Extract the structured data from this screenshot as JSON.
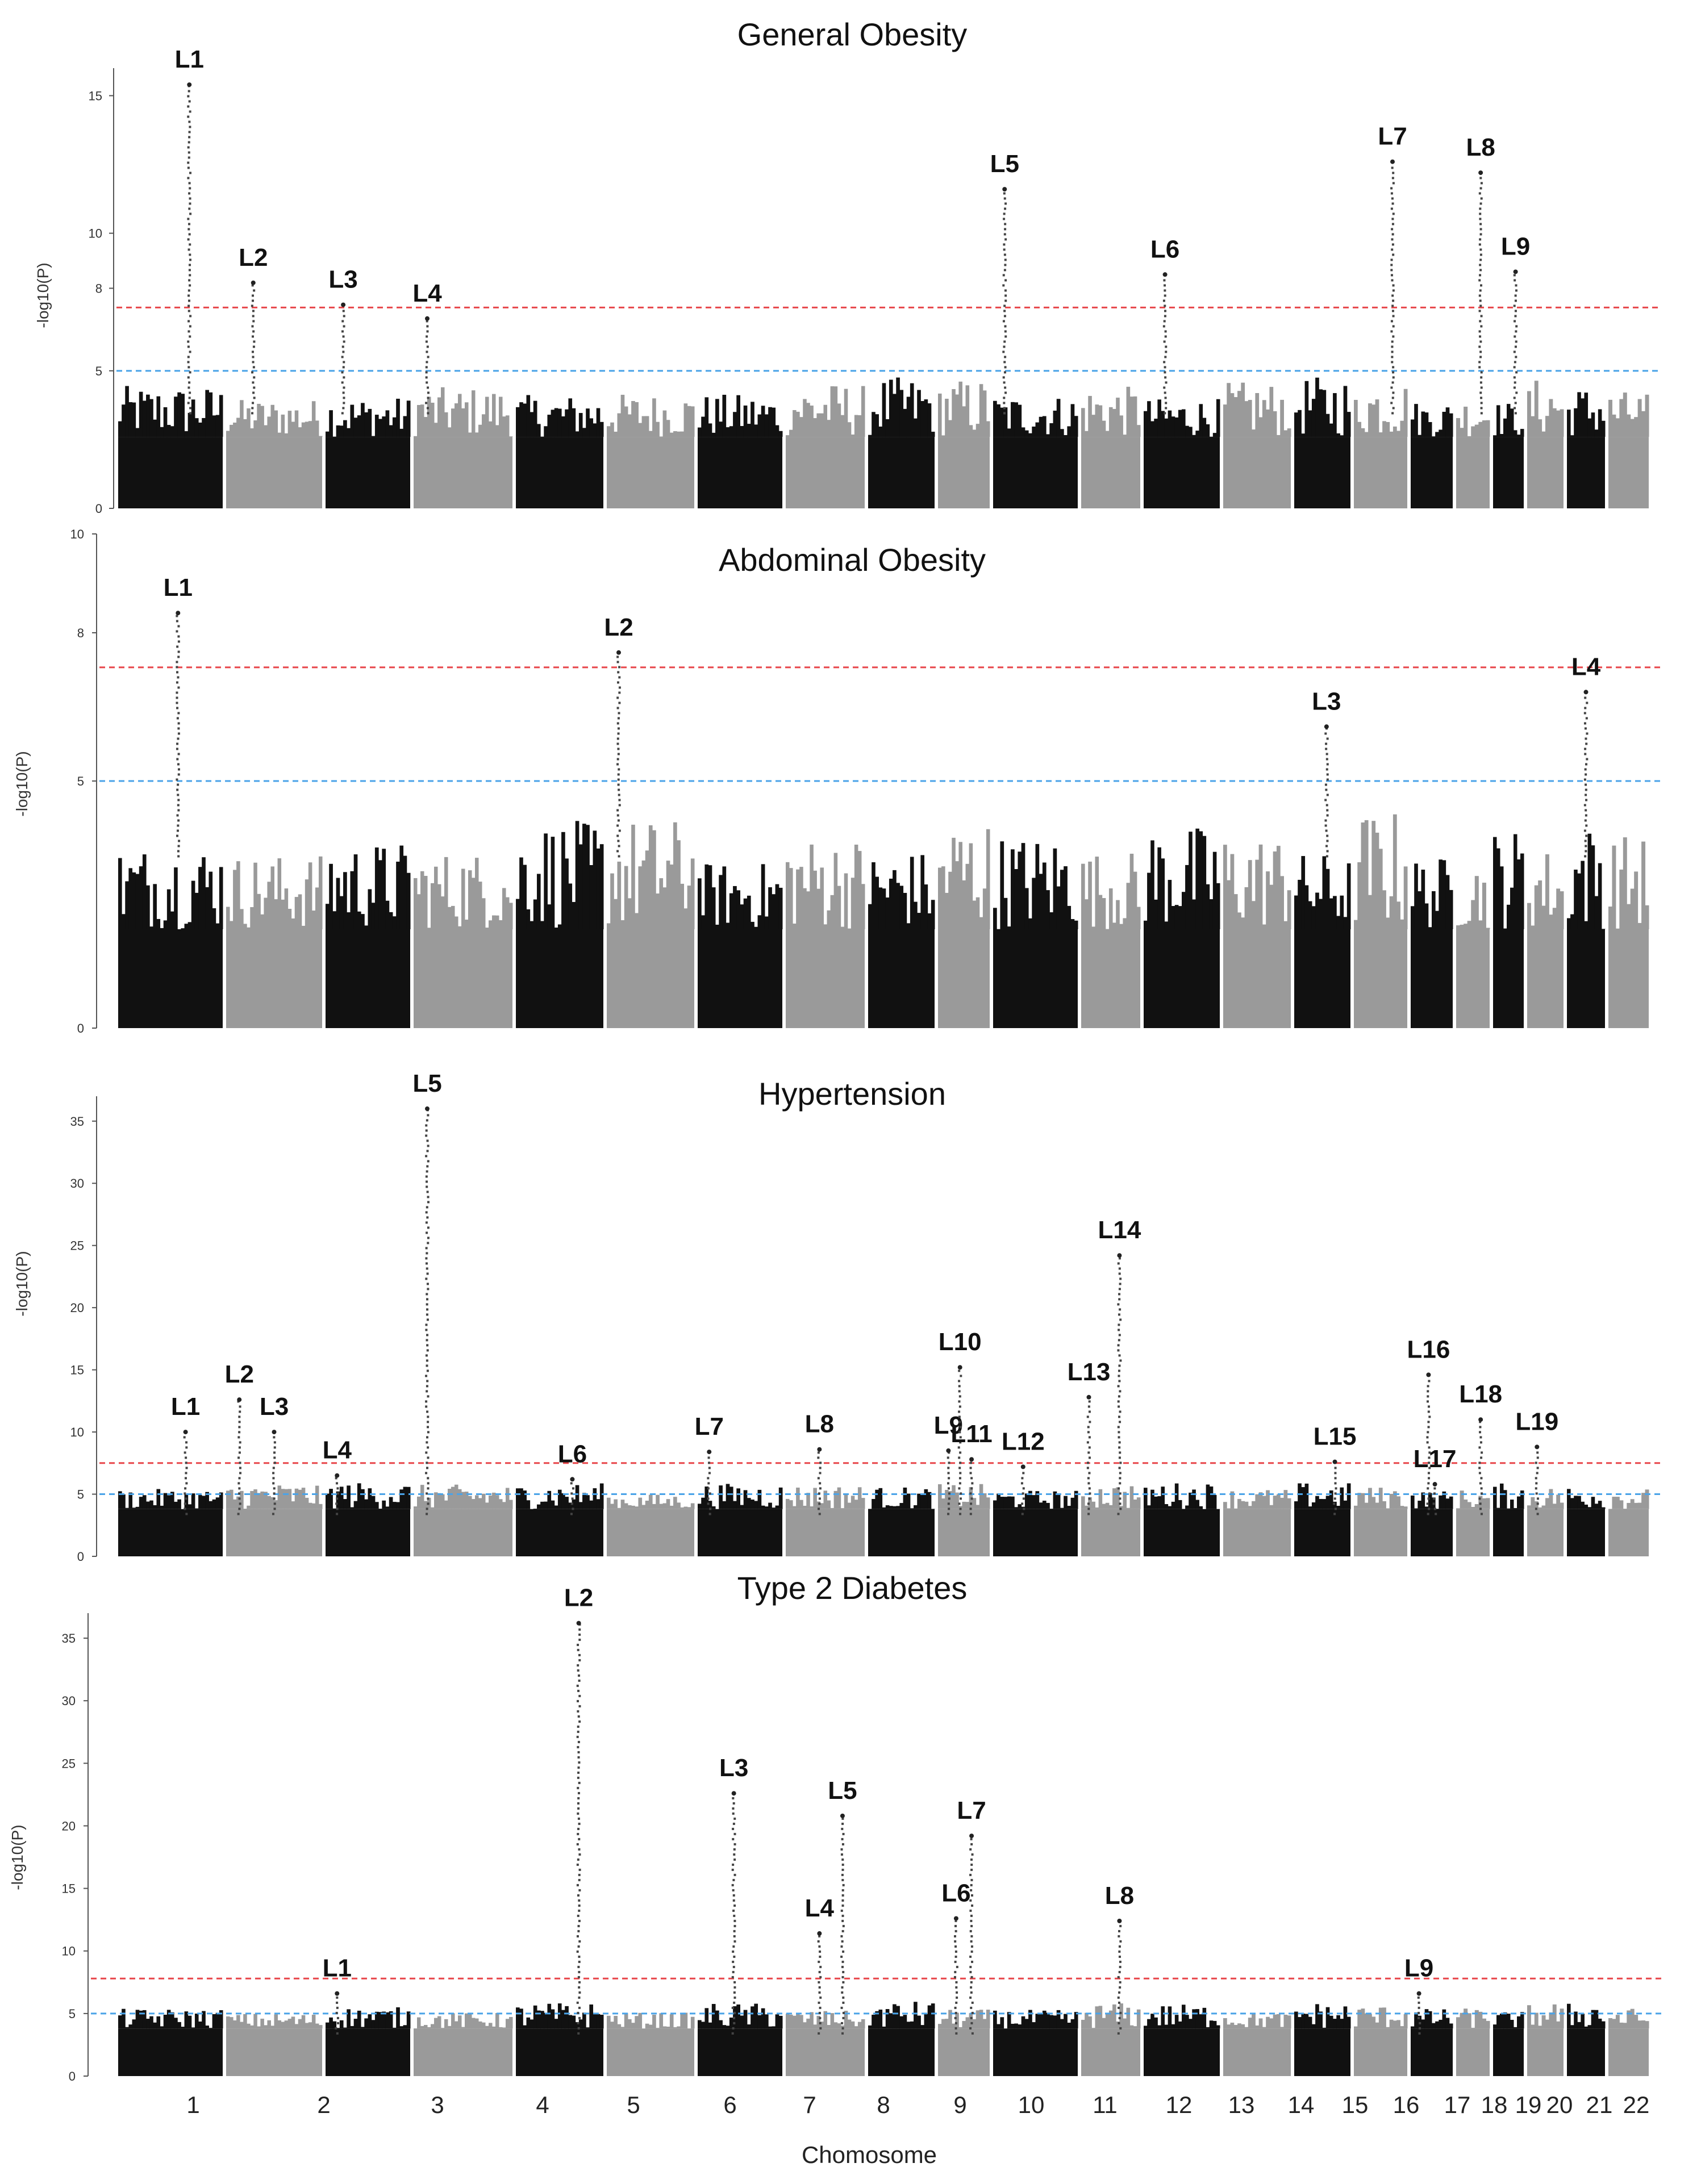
{
  "chart_data": {
    "type": "scatter",
    "subtype": "manhattan",
    "xlabel": "Chomosome",
    "chromosomes": [
      "1",
      "2",
      "3",
      "4",
      "5",
      "6",
      "7",
      "8",
      "9",
      "10",
      "11",
      "12",
      "13",
      "14",
      "15",
      "16",
      "17",
      "18",
      "19",
      "20",
      "21",
      "22"
    ],
    "panels": [
      {
        "title": "General Obesity",
        "ylabel": "-log10(P)",
        "ylim": [
          0,
          16
        ],
        "yticks": [
          0,
          5,
          8,
          10,
          15
        ],
        "significance_lines": [
          {
            "value": 7.3,
            "color": "#e8464a"
          },
          {
            "value": 5,
            "color": "#4aa3e8"
          }
        ],
        "loci": [
          {
            "label": "L1",
            "chr": 1.75,
            "p": 15.4
          },
          {
            "label": "L2",
            "chr": 2.2,
            "p": 8.2
          },
          {
            "label": "L3",
            "chr": 3.1,
            "p": 7.4
          },
          {
            "label": "L4",
            "chr": 4.0,
            "p": 6.9
          },
          {
            "label": "L5",
            "chr": 11.0,
            "p": 11.6
          },
          {
            "label": "L6",
            "chr": 13.2,
            "p": 8.5
          },
          {
            "label": "L7",
            "chr": 16.8,
            "p": 12.6
          },
          {
            "label": "L8",
            "chr": 18.8,
            "p": 12.2
          },
          {
            "label": "L9",
            "chr": 19.8,
            "p": 8.6
          }
        ]
      },
      {
        "title": "Abdominal Obesity",
        "ylabel": "-log10(P)",
        "ylim": [
          0,
          10
        ],
        "yticks": [
          0,
          5,
          8,
          10
        ],
        "significance_lines": [
          {
            "value": 7.3,
            "color": "#e8464a"
          },
          {
            "value": 5,
            "color": "#4aa3e8"
          }
        ],
        "loci": [
          {
            "label": "L1",
            "chr": 1.6,
            "p": 8.4
          },
          {
            "label": "L2",
            "chr": 6.0,
            "p": 7.6
          },
          {
            "label": "L3",
            "chr": 15.6,
            "p": 6.1
          },
          {
            "label": "L4",
            "chr": 21.5,
            "p": 6.8
          }
        ]
      },
      {
        "title": "Hypertension",
        "ylabel": "-log10(P)",
        "ylim": [
          0,
          37
        ],
        "yticks": [
          0,
          5,
          10,
          15,
          20,
          25,
          30,
          35
        ],
        "significance_lines": [
          {
            "value": 7.5,
            "color": "#e8464a"
          },
          {
            "value": 5,
            "color": "#4aa3e8"
          }
        ],
        "loci": [
          {
            "label": "L1",
            "chr": 1.7,
            "p": 10.0
          },
          {
            "label": "L2",
            "chr": 2.0,
            "p": 12.6
          },
          {
            "label": "L3",
            "chr": 2.5,
            "p": 10.0
          },
          {
            "label": "L4",
            "chr": 3.0,
            "p": 6.5
          },
          {
            "label": "L5",
            "chr": 4.0,
            "p": 36.0
          },
          {
            "label": "L6",
            "chr": 5.7,
            "p": 6.2
          },
          {
            "label": "L7",
            "chr": 7.0,
            "p": 8.4
          },
          {
            "label": "L8",
            "chr": 8.4,
            "p": 8.6
          },
          {
            "label": "L9",
            "chr": 10.1,
            "p": 8.5
          },
          {
            "label": "L10",
            "chr": 10.4,
            "p": 15.2
          },
          {
            "label": "L11",
            "chr": 10.7,
            "p": 7.8
          },
          {
            "label": "L12",
            "chr": 11.3,
            "p": 7.2
          },
          {
            "label": "L13",
            "chr": 12.0,
            "p": 12.8
          },
          {
            "label": "L14",
            "chr": 12.7,
            "p": 24.2
          },
          {
            "label": "L15",
            "chr": 15.8,
            "p": 7.6
          },
          {
            "label": "L16",
            "chr": 17.4,
            "p": 14.6
          },
          {
            "label": "L17",
            "chr": 17.6,
            "p": 5.8
          },
          {
            "label": "L18",
            "chr": 18.8,
            "p": 11.0
          },
          {
            "label": "L19",
            "chr": 20.2,
            "p": 8.8
          }
        ]
      },
      {
        "title": "Type 2 Diabetes",
        "ylabel": "-log10(P)",
        "ylim": [
          0,
          37
        ],
        "yticks": [
          0,
          5,
          10,
          15,
          20,
          25,
          30,
          35
        ],
        "significance_lines": [
          {
            "value": 7.8,
            "color": "#e8464a"
          },
          {
            "value": 5,
            "color": "#4aa3e8"
          }
        ],
        "loci": [
          {
            "label": "L1",
            "chr": 3.0,
            "p": 6.6
          },
          {
            "label": "L2",
            "chr": 5.8,
            "p": 36.2
          },
          {
            "label": "L3",
            "chr": 7.4,
            "p": 22.6
          },
          {
            "label": "L4",
            "chr": 8.4,
            "p": 11.4
          },
          {
            "label": "L5",
            "chr": 8.8,
            "p": 20.8
          },
          {
            "label": "L6",
            "chr": 10.3,
            "p": 12.6
          },
          {
            "label": "L7",
            "chr": 10.7,
            "p": 19.2
          },
          {
            "label": "L8",
            "chr": 12.7,
            "p": 12.4
          },
          {
            "label": "L9",
            "chr": 17.1,
            "p": 6.6
          }
        ]
      }
    ]
  }
}
